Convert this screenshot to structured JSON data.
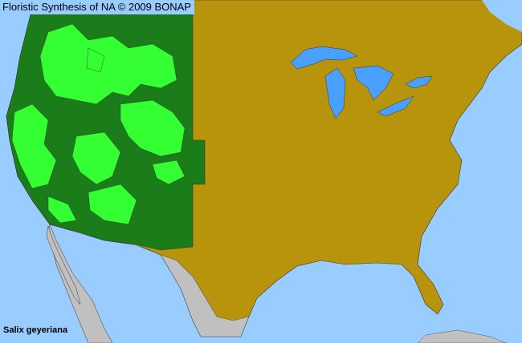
{
  "header": {
    "title": "Floristic Synthesis of NA © 2009 BONAP"
  },
  "legend": {
    "species": "Salix geyeriana"
  },
  "colors": {
    "ocean": "#99ccff",
    "lakes": "#4aa0ff",
    "not_present_state": "#b8940c",
    "present_state": "#1a7d1a",
    "present_county": "#33ff33",
    "outside_region": "#c0c0c0"
  }
}
